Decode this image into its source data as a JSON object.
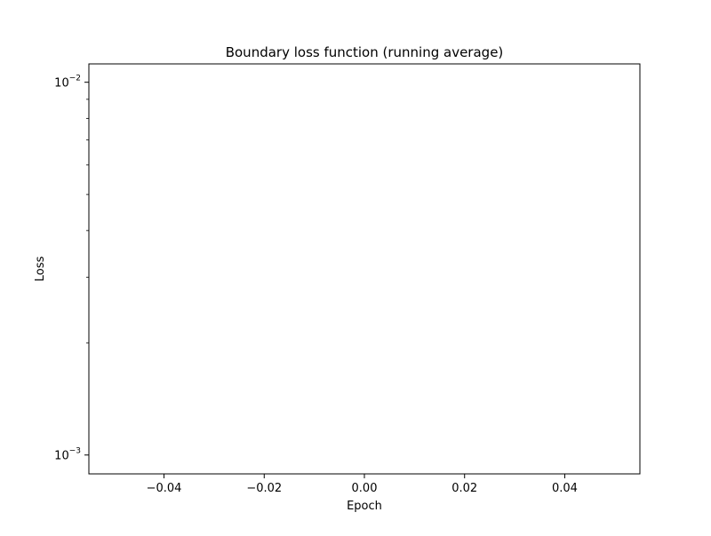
{
  "chart_data": {
    "type": "line",
    "title": "Boundary loss function (running average)",
    "xlabel": "Epoch",
    "ylabel": "Loss",
    "xlim": [
      -0.055,
      0.055
    ],
    "ylim": [
      0.00089,
      0.0112
    ],
    "xscale": "linear",
    "yscale": "log",
    "grid": false,
    "x_ticks": [
      -0.04,
      -0.02,
      0.0,
      0.02,
      0.04
    ],
    "x_tick_labels": [
      "−0.04",
      "−0.02",
      "0.00",
      "0.02",
      "0.04"
    ],
    "y_major_ticks": [
      0.001,
      0.01
    ],
    "y_major_tick_labels": [
      {
        "base": "10",
        "exp": "−3"
      },
      {
        "base": "10",
        "exp": "−2"
      }
    ],
    "y_minor_ticks": [
      0.002,
      0.003,
      0.004,
      0.005,
      0.006,
      0.007,
      0.008,
      0.009
    ],
    "series": [
      {
        "x": [],
        "y": [],
        "color": "#1f77b4"
      }
    ]
  }
}
